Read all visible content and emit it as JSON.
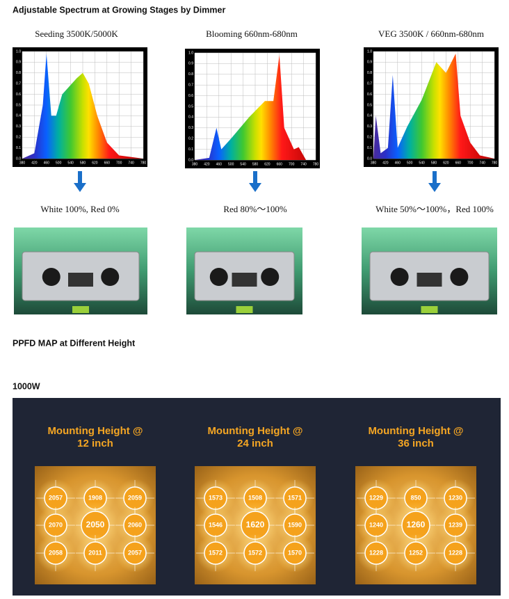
{
  "heading": "Adjustable Spectrum at Growing Stages by Dimmer",
  "spectra": [
    {
      "title": "Seeding 3500K/5000K",
      "caption": "White 100%, Red 0%",
      "yticks": [
        "0.0",
        "0.1",
        "0.2",
        "0.3",
        "0.4",
        "0.5",
        "0.6",
        "0.7",
        "0.8",
        "0.9",
        "1.0"
      ],
      "xticks": [
        "380",
        "420",
        "460",
        "500",
        "540",
        "580",
        "620",
        "660",
        "700",
        "740",
        "780"
      ]
    },
    {
      "title": "Blooming 660nm-680nm",
      "caption": "Red 80%～100%",
      "yticks": [
        "0.0",
        "0.1",
        "0.2",
        "0.3",
        "0.4",
        "0.5",
        "0.6",
        "0.7",
        "0.8",
        "0.9",
        "1.0"
      ],
      "xticks": [
        "380",
        "420",
        "460",
        "500",
        "540",
        "580",
        "620",
        "660",
        "700",
        "740",
        "780"
      ]
    },
    {
      "title": "VEG 3500K / 660nm-680nm",
      "caption": "White 50%～100%，Red 100%",
      "yticks": [
        "0.0",
        "0.1",
        "0.2",
        "0.3",
        "0.4",
        "0.5",
        "0.6",
        "0.7",
        "0.8",
        "0.9",
        "1.0"
      ],
      "xticks": [
        "380",
        "420",
        "460",
        "500",
        "540",
        "580",
        "620",
        "660",
        "700",
        "740",
        "780"
      ]
    }
  ],
  "ppfd_heading": "PPFD MAP at Different Height",
  "power": "1000W",
  "maps": [
    {
      "title": "Mounting Height @",
      "height": "12 inch",
      "values": [
        [
          2057,
          1908,
          2059
        ],
        [
          2070,
          2050,
          2060
        ],
        [
          2058,
          2011,
          2057
        ]
      ]
    },
    {
      "title": "Mounting Height @",
      "height": "24 inch",
      "values": [
        [
          1573,
          1508,
          1571
        ],
        [
          1546,
          1620,
          1590
        ],
        [
          1572,
          1572,
          1570
        ]
      ]
    },
    {
      "title": "Mounting Height @",
      "height": "36 inch",
      "values": [
        [
          1229,
          850,
          1230
        ],
        [
          1240,
          1260,
          1239
        ],
        [
          1228,
          1252,
          1228
        ]
      ]
    }
  ]
}
